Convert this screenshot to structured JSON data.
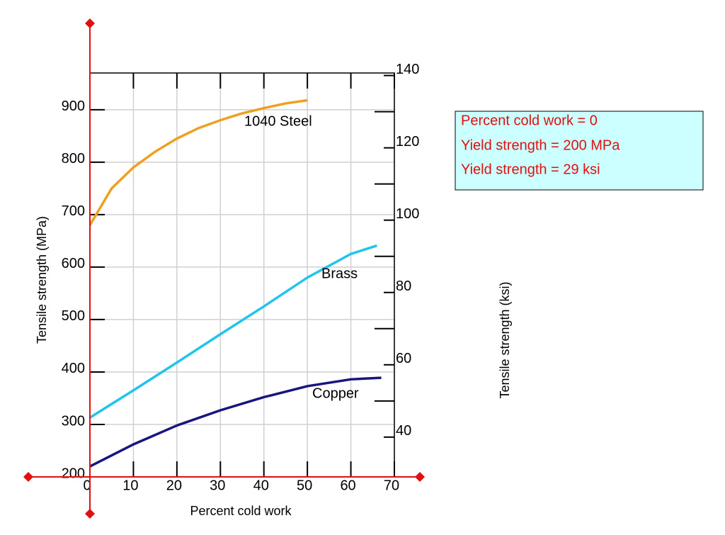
{
  "chart_data": {
    "type": "line",
    "xlabel": "Percent cold work",
    "ylabel": "Tensile strength (MPa)",
    "y2label": "Tensile strength (ksi)",
    "xlim": [
      0,
      70
    ],
    "xticks": [
      0,
      10,
      20,
      30,
      40,
      50,
      60,
      70
    ],
    "ylim": [
      200,
      970
    ],
    "yticks": [
      200,
      300,
      400,
      500,
      600,
      700,
      800,
      900
    ],
    "y2lim": [
      29,
      140.7
    ],
    "y2ticks": [
      40,
      60,
      80,
      100,
      120,
      140
    ],
    "y2minor_ticks": [
      50,
      70,
      90,
      110,
      130
    ],
    "grid": true,
    "series": [
      {
        "name": "1040 Steel",
        "color": "#f0a020",
        "x": [
          0,
          5,
          10,
          15,
          20,
          25,
          30,
          35,
          40,
          45,
          50
        ],
        "values": [
          680,
          750,
          790,
          820,
          845,
          865,
          880,
          893,
          903,
          912,
          918
        ]
      },
      {
        "name": "Brass",
        "color": "#22c4ee",
        "x": [
          0,
          10,
          20,
          30,
          40,
          50,
          60,
          66
        ],
        "values": [
          313,
          365,
          418,
          472,
          525,
          580,
          625,
          641
        ]
      },
      {
        "name": "Copper",
        "color": "#16167e",
        "x": [
          0,
          10,
          20,
          30,
          40,
          50,
          60,
          67
        ],
        "values": [
          220,
          262,
          298,
          327,
          352,
          373,
          386,
          389
        ]
      }
    ]
  },
  "info_box": {
    "lines": [
      "Percent cold work = 0",
      "Yield strength = 200 MPa",
      "Yield strength = 29 ksi"
    ]
  }
}
